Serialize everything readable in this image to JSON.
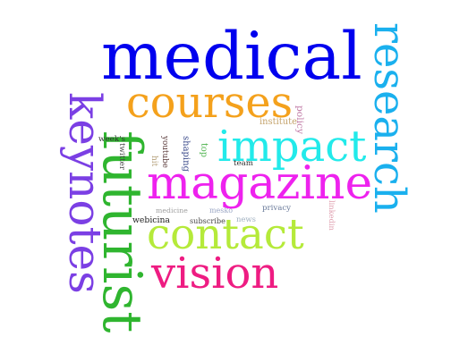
{
  "words": [
    {
      "id": "medical",
      "text": "medical",
      "color": "#0000ee",
      "orientation": "horizontal"
    },
    {
      "id": "research",
      "text": "research",
      "color": "#1ab0ee",
      "orientation": "vertical"
    },
    {
      "id": "courses",
      "text": "courses",
      "color": "#f4a11c",
      "orientation": "horizontal"
    },
    {
      "id": "keynotes",
      "text": "keynotes",
      "color": "#7b3fe4",
      "orientation": "vertical"
    },
    {
      "id": "futurist",
      "text": "futurist",
      "color": "#2fb52f",
      "orientation": "vertical"
    },
    {
      "id": "impact",
      "text": "impact",
      "color": "#22eaea",
      "orientation": "horizontal"
    },
    {
      "id": "magazine",
      "text": "magazine",
      "color": "#ee22ee",
      "orientation": "horizontal"
    },
    {
      "id": "contact",
      "text": "contact",
      "color": "#b5ea3a",
      "orientation": "horizontal"
    },
    {
      "id": "vision",
      "text": "vision",
      "color": "#ee1c82",
      "orientation": "horizontal"
    },
    {
      "id": "institute",
      "text": "institute",
      "color": "#c4a36b",
      "orientation": "horizontal"
    },
    {
      "id": "policy",
      "text": "policy",
      "color": "#c07aa6",
      "orientation": "vertical"
    },
    {
      "id": "weeks",
      "text": "week's",
      "color": "#333333",
      "orientation": "horizontal"
    },
    {
      "id": "twitter",
      "text": "twitter",
      "color": "#444444",
      "orientation": "vertical"
    },
    {
      "id": "youtube",
      "text": "youtube",
      "color": "#5a3a3a",
      "orientation": "vertical"
    },
    {
      "id": "shaping",
      "text": "shaping",
      "color": "#3a4a8a",
      "orientation": "vertical"
    },
    {
      "id": "top",
      "text": "top",
      "color": "#5ab85a",
      "orientation": "vertical"
    },
    {
      "id": "hit",
      "text": "hit",
      "color": "#b5a07a",
      "orientation": "vertical"
    },
    {
      "id": "team",
      "text": "team",
      "color": "#333333",
      "orientation": "horizontal"
    },
    {
      "id": "medicine",
      "text": "medicine",
      "color": "#a0a0a0",
      "orientation": "horizontal"
    },
    {
      "id": "mesko",
      "text": "mesko",
      "color": "#9aa6c4",
      "orientation": "horizontal"
    },
    {
      "id": "privacy",
      "text": "privacy",
      "color": "#6a7a9a",
      "orientation": "horizontal"
    },
    {
      "id": "webicina",
      "text": "webicina",
      "color": "#222222",
      "orientation": "horizontal"
    },
    {
      "id": "subscribe",
      "text": "subscribe",
      "color": "#444444",
      "orientation": "horizontal"
    },
    {
      "id": "news",
      "text": "news",
      "color": "#a0b0c0",
      "orientation": "horizontal"
    },
    {
      "id": "linkedin",
      "text": "linkedin",
      "color": "#e0a0b0",
      "orientation": "vertical"
    }
  ]
}
